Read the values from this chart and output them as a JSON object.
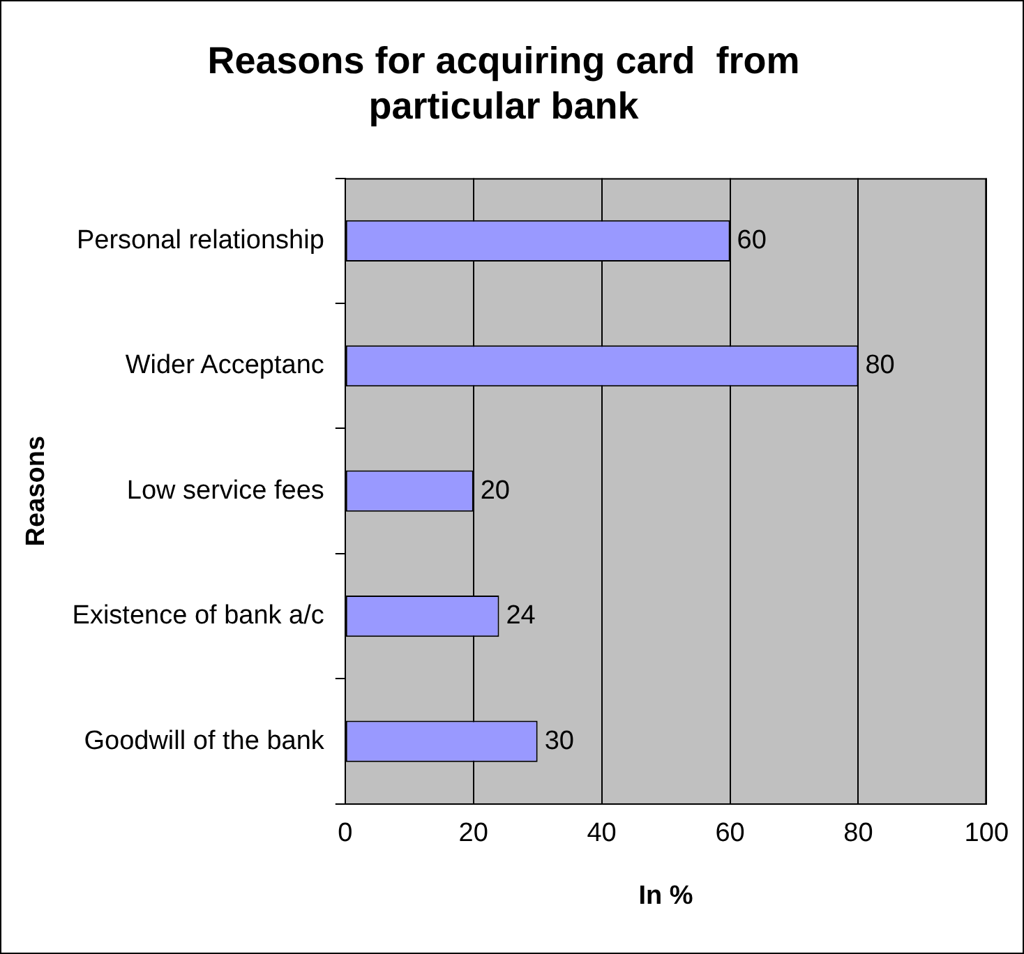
{
  "chart_data": {
    "type": "bar",
    "orientation": "horizontal",
    "title": "Reasons for acquiring card  from\nparticular bank",
    "xlabel": "In %",
    "ylabel": "Reasons",
    "categories": [
      "Personal relationship",
      "Wider Acceptanc",
      "Low service fees",
      "Existence of bank a/c",
      "Goodwill of the bank"
    ],
    "values": [
      60,
      80,
      20,
      24,
      30
    ],
    "color": "#9999ff",
    "xlim": [
      0,
      100
    ],
    "xticks": [
      0,
      20,
      40,
      60,
      80,
      100
    ],
    "grid": "x",
    "data_labels": true,
    "legend": false
  }
}
